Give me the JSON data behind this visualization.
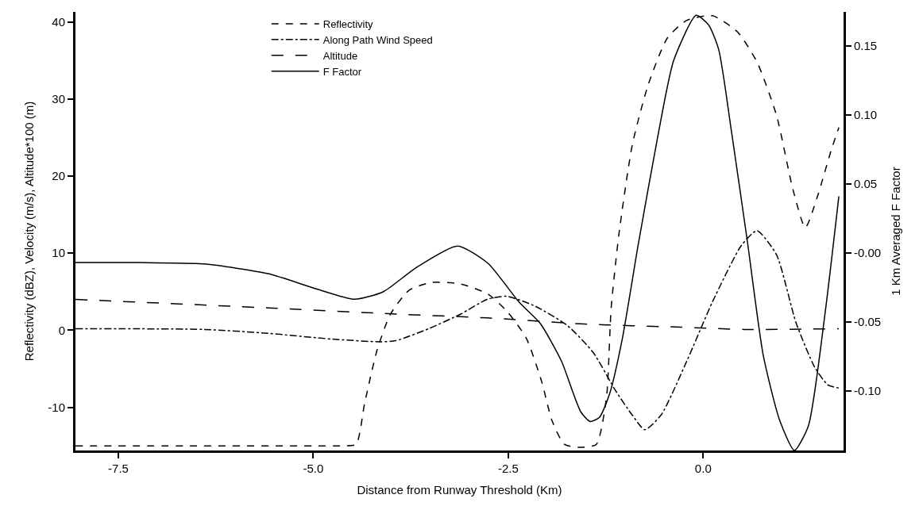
{
  "chart_data": {
    "type": "line",
    "xlabel": "Distance from Runway Threshold (Km)",
    "ylabel": "Reflectivity (dBZ), Velocity (m/s), Altitude*100 (m)",
    "y2label": "1 Km Averaged F Factor",
    "xlim": [
      -8.05,
      1.8
    ],
    "xticks": [
      -7.5,
      {
        "value": -5.0,
        "label": "-5.0"
      },
      {
        "value": -2.5,
        "label": "-2.5"
      },
      {
        "value": 0,
        "label": "0.0"
      }
    ],
    "ylim": [
      -15.6,
      41.3
    ],
    "yticks": [
      -10,
      0,
      10,
      20,
      30,
      40
    ],
    "y2lim": [
      -0.143,
      0.1745
    ],
    "y2ticks": [
      {
        "value": -0.1,
        "label": "-0.10"
      },
      {
        "value": -0.05,
        "label": "-0.05"
      },
      {
        "value": 0,
        "label": "-0.00"
      },
      {
        "value": 0.05,
        "label": "0.05"
      },
      {
        "value": 0.1,
        "label": "0.10"
      },
      {
        "value": 0.15,
        "label": "0.15"
      }
    ],
    "grid": false,
    "legend": "top",
    "marker": "none",
    "series": [
      {
        "name": "Reflectivity",
        "color": "#000000",
        "line_style": "dashed",
        "x": [
          -8.05,
          -6.5,
          -5.0,
          -4.59,
          -4.45,
          -4.34,
          -4.18,
          -4.01,
          -3.77,
          -3.48,
          -3.11,
          -2.76,
          -2.52,
          -2.27,
          -2.07,
          -1.94,
          -1.78,
          -1.57,
          -1.37,
          -1.24,
          -1.18,
          -1.08,
          -0.91,
          -0.71,
          -0.46,
          -0.21,
          0.12,
          0.44,
          0.69,
          0.94,
          1.15,
          1.31,
          1.47,
          1.64,
          1.74
        ],
        "values": [
          -15.0,
          -15.0,
          -15.0,
          -15.0,
          -14.8,
          -9.4,
          -2.5,
          2.1,
          5.2,
          6.2,
          6.0,
          4.7,
          2.5,
          -1.0,
          -6.7,
          -11.7,
          -14.8,
          -15.2,
          -14.8,
          -8.7,
          2.9,
          12.5,
          24,
          31.7,
          37.9,
          40.2,
          40.8,
          38.7,
          34.8,
          27.9,
          18.3,
          13.3,
          17.5,
          23.3,
          26.3
        ]
      },
      {
        "name": "Along Path Wind Speed",
        "color": "#000000",
        "line_style": "dashdot",
        "x": [
          -8.05,
          -6.4,
          -5.58,
          -4.76,
          -4.14,
          -3.94,
          -3.52,
          -3.11,
          -2.77,
          -2.52,
          -2.15,
          -1.74,
          -1.41,
          -1.12,
          -0.91,
          -0.75,
          -0.54,
          -0.21,
          0.12,
          0.49,
          0.69,
          0.94,
          1.19,
          1.43,
          1.6,
          1.74
        ],
        "values": [
          0.2,
          0.1,
          -0.4,
          -1.15,
          -1.5,
          -1.35,
          0.2,
          2.1,
          4.0,
          4.4,
          3.1,
          0.6,
          -2.9,
          -7.9,
          -11,
          -12.9,
          -11,
          -4.0,
          3.7,
          11,
          12.9,
          9.8,
          1.0,
          -4.8,
          -7.1,
          -7.5
        ]
      },
      {
        "name": "Altitude",
        "color": "#000000",
        "line_style": "longdash",
        "x": [
          -8.05,
          -5.58,
          -3.94,
          -2.77,
          -1.53,
          -0.29,
          0.53,
          1.74
        ],
        "values": [
          4.0,
          2.9,
          2.1,
          1.6,
          0.8,
          0.4,
          0.1,
          0.2
        ]
      },
      {
        "name": "F Factor",
        "color": "#000000",
        "line_style": "solid",
        "axis": "y2",
        "x": [
          -8.05,
          -7.22,
          -6.4,
          -5.58,
          -4.96,
          -4.47,
          -4.1,
          -3.69,
          -3.15,
          -2.76,
          -2.36,
          -2.09,
          -1.82,
          -1.57,
          -1.45,
          -1.33,
          -1.2,
          -1.04,
          -0.83,
          -0.58,
          -0.38,
          -0.09,
          0.07,
          0.2,
          0.36,
          0.57,
          0.77,
          0.98,
          1.17,
          1.35,
          1.56,
          1.74
        ],
        "values": [
          -0.007,
          -0.007,
          -0.008,
          -0.015,
          -0.026,
          -0.0335,
          -0.028,
          -0.011,
          0.005,
          -0.0075,
          -0.0357,
          -0.051,
          -0.078,
          -0.115,
          -0.122,
          -0.119,
          -0.102,
          -0.063,
          0.007,
          0.085,
          0.139,
          0.172,
          0.165,
          0.147,
          0.089,
          0.007,
          -0.074,
          -0.121,
          -0.143,
          -0.125,
          -0.045,
          0.041
        ]
      }
    ]
  }
}
